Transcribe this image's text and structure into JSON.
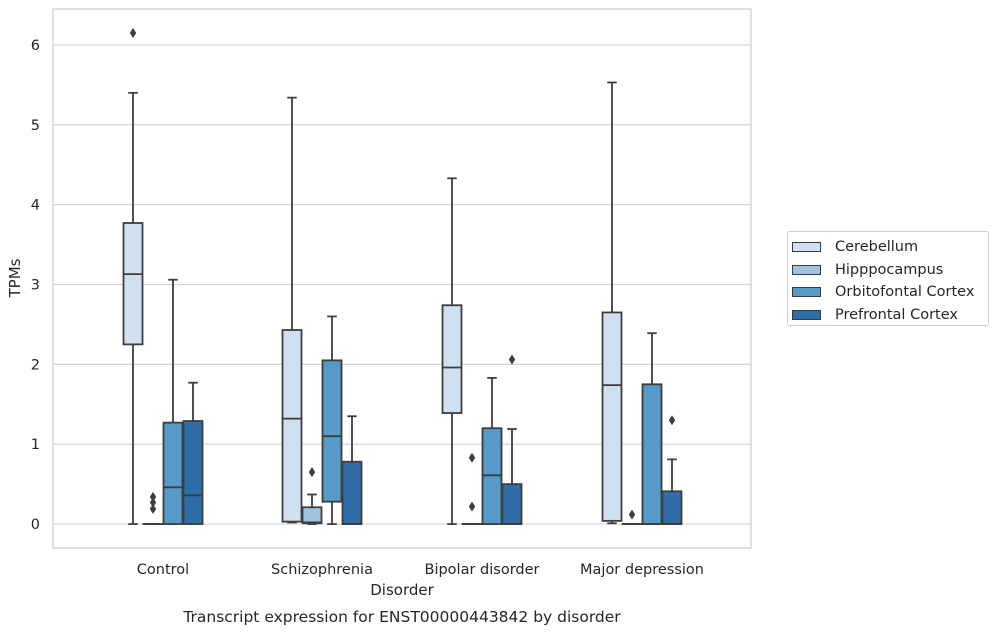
{
  "chart_data": {
    "type": "boxplot",
    "title": "Transcript expression for ENST00000443842 by disorder",
    "xlabel": "Disorder",
    "ylabel": "TPMs",
    "ylim": [
      -0.3,
      6.45
    ],
    "yticks": [
      0,
      1,
      2,
      3,
      4,
      5,
      6
    ],
    "grid": true,
    "legend_position": "right",
    "categories": [
      "Control",
      "Schizophrenia",
      "Bipolar disorder",
      "Major depression"
    ],
    "series": [
      {
        "name": "Cerebellum",
        "color": "#d1e0f0",
        "boxes": [
          {
            "whislo": 0,
            "q1": 2.25,
            "med": 3.13,
            "q3": 3.77,
            "whishi": 5.4,
            "fliers": [
              6.15
            ]
          },
          {
            "whislo": 0.02,
            "q1": 0.03,
            "med": 1.32,
            "q3": 2.43,
            "whishi": 5.34,
            "fliers": []
          },
          {
            "whislo": 0,
            "q1": 1.39,
            "med": 1.96,
            "q3": 2.74,
            "whishi": 4.33,
            "fliers": []
          },
          {
            "whislo": 0.01,
            "q1": 0.04,
            "med": 1.74,
            "q3": 2.65,
            "whishi": 5.53,
            "fliers": []
          }
        ]
      },
      {
        "name": "Hipppocampus",
        "color": "#9dc3e0",
        "boxes": [
          {
            "whislo": 0,
            "q1": 0,
            "med": 0,
            "q3": 0,
            "whishi": 0,
            "fliers": [
              0.34,
              0.27,
              0.19
            ]
          },
          {
            "whislo": 0,
            "q1": 0.01,
            "med": 0.02,
            "q3": 0.21,
            "whishi": 0.37,
            "fliers": [
              0.65
            ]
          },
          {
            "whislo": 0,
            "q1": 0,
            "med": 0,
            "q3": 0,
            "whishi": 0,
            "fliers": [
              0.83,
              0.22
            ]
          },
          {
            "whislo": 0,
            "q1": 0,
            "med": 0,
            "q3": 0,
            "whishi": 0,
            "fliers": [
              0.12
            ]
          }
        ]
      },
      {
        "name": "Orbitofontal Cortex",
        "color": "#5799c7",
        "boxes": [
          {
            "whislo": 0,
            "q1": 0,
            "med": 0.46,
            "q3": 1.27,
            "whishi": 3.06,
            "fliers": []
          },
          {
            "whislo": 0,
            "q1": 0.28,
            "med": 1.1,
            "q3": 2.05,
            "whishi": 2.6,
            "fliers": []
          },
          {
            "whislo": 0,
            "q1": 0,
            "med": 0.61,
            "q3": 1.2,
            "whishi": 1.83,
            "fliers": []
          },
          {
            "whislo": 0,
            "q1": 0,
            "med": 0,
            "q3": 1.75,
            "whishi": 2.39,
            "fliers": []
          }
        ]
      },
      {
        "name": "Prefrontal Cortex",
        "color": "#2f6da8",
        "boxes": [
          {
            "whislo": 0,
            "q1": 0,
            "med": 0.36,
            "q3": 1.29,
            "whishi": 1.77,
            "fliers": []
          },
          {
            "whislo": 0,
            "q1": 0,
            "med": 0,
            "q3": 0.78,
            "whishi": 1.35,
            "fliers": []
          },
          {
            "whislo": 0,
            "q1": 0,
            "med": 0,
            "q3": 0.5,
            "whishi": 1.19,
            "fliers": [
              2.06
            ]
          },
          {
            "whislo": 0,
            "q1": 0,
            "med": 0,
            "q3": 0.41,
            "whishi": 0.81,
            "fliers": [
              1.3
            ]
          }
        ]
      }
    ]
  }
}
